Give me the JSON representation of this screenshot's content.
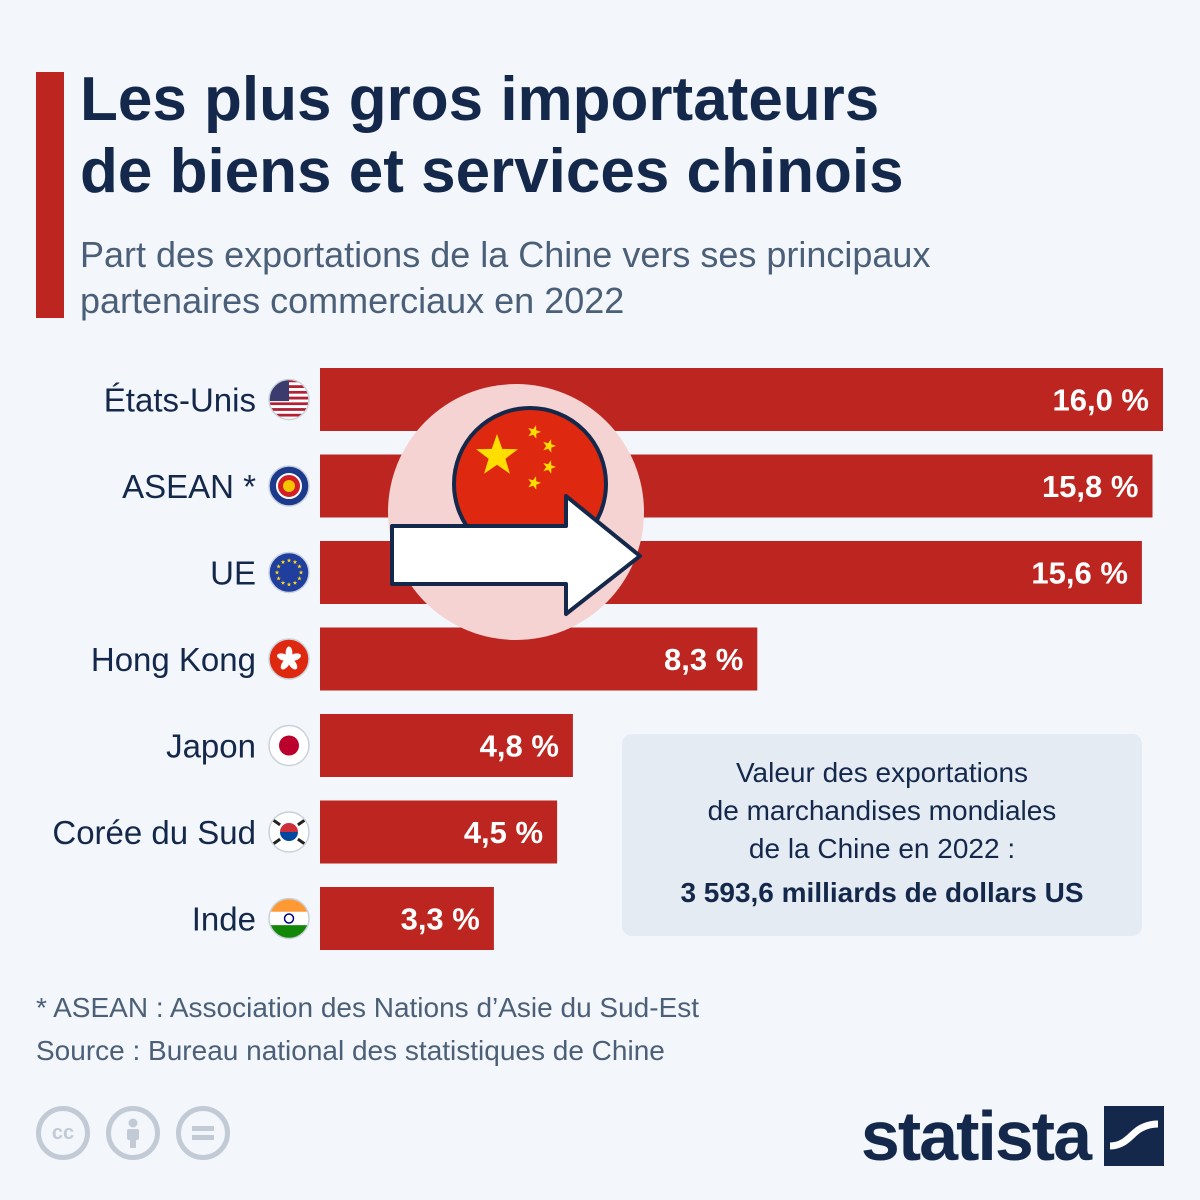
{
  "header": {
    "title_line1": "Les plus gros importateurs",
    "title_line2": "de biens et services chinois",
    "subtitle_line1": "Part des exportations de la Chine vers ses principaux",
    "subtitle_line2": "partenaires commerciaux en 2022"
  },
  "chart_data": {
    "type": "bar",
    "orientation": "horizontal",
    "categories": [
      "États-Unis",
      "ASEAN *",
      "UE",
      "Hong Kong",
      "Japon",
      "Corée du Sud",
      "Inde"
    ],
    "values": [
      16.0,
      15.8,
      15.6,
      8.3,
      4.8,
      4.5,
      3.3
    ],
    "value_labels": [
      "16,0 %",
      "15,8 %",
      "15,6 %",
      "8,3 %",
      "4,8 %",
      "4,5 %",
      "3,3 %"
    ],
    "flags": [
      "us-flag-icon",
      "asean-flag-icon",
      "eu-flag-icon",
      "hong-kong-flag-icon",
      "japan-flag-icon",
      "south-korea-flag-icon",
      "india-flag-icon"
    ],
    "unit": "%",
    "xlim": [
      0,
      16.0
    ],
    "grid": false,
    "legend": "none",
    "bar_color": "#bd2620"
  },
  "info_box": {
    "line1": "Valeur des exportations",
    "line2": "de marchandises mondiales",
    "line3": "de la Chine en 2022 :",
    "value": "3 593,6 milliards de dollars US"
  },
  "footer": {
    "note": "* ASEAN : Association des Nations d’Asie du Sud-Est",
    "source": "Source : Bureau national des statistiques de Chine",
    "license_icons": [
      "cc-icon",
      "attribution-icon",
      "no-derivatives-icon"
    ],
    "logo_text": "statista"
  },
  "colors": {
    "accent": "#bd2620",
    "title": "#14284b",
    "subtitle": "#4b6078",
    "background": "#f3f6fa"
  }
}
